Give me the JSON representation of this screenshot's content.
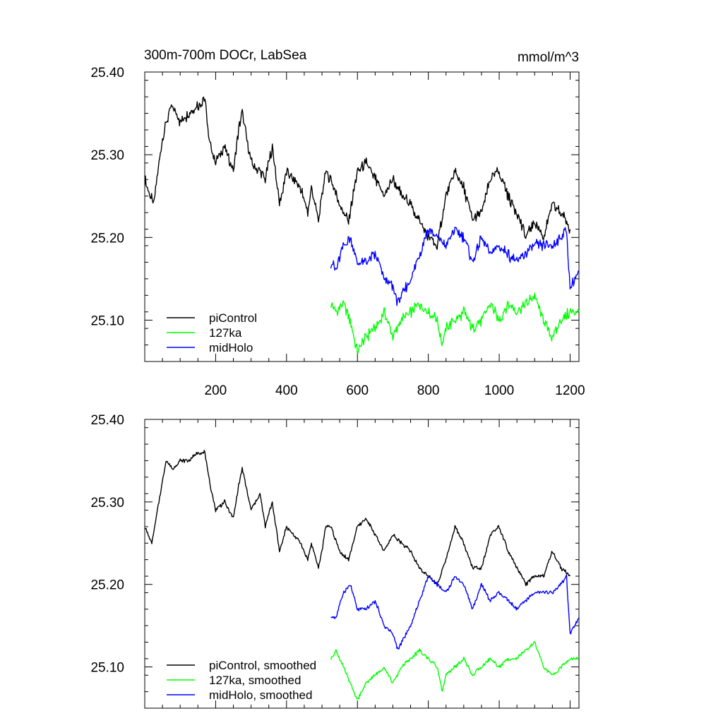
{
  "title": "300m-700m DOCr, LabSea",
  "units": "mmol/m^3",
  "chart_data": [
    {
      "type": "line",
      "xlim": [
        0,
        1225
      ],
      "ylim": [
        25.05,
        25.4
      ],
      "yticks": [
        25.1,
        25.2,
        25.3,
        25.4
      ],
      "ytick_labels": [
        "25.10",
        "25.20",
        "25.30",
        "25.40"
      ],
      "xticks": [
        200,
        400,
        600,
        800,
        1000,
        1200
      ],
      "xtick_labels": [
        "200",
        "400",
        "600",
        "800",
        "1000",
        "1200"
      ],
      "legend_position": "bottom-left",
      "series": [
        {
          "name": "piControl",
          "color": "#000000",
          "x": [
            0,
            25,
            50,
            75,
            100,
            125,
            150,
            170,
            180,
            200,
            225,
            250,
            265,
            275,
            300,
            325,
            340,
            360,
            380,
            400,
            420,
            440,
            460,
            470,
            490,
            500,
            510,
            525,
            550,
            575,
            600,
            625,
            650,
            675,
            700,
            725,
            750,
            775,
            800,
            825,
            850,
            875,
            900,
            925,
            950,
            975,
            1000,
            1025,
            1050,
            1075,
            1100,
            1125,
            1150,
            1175,
            1200
          ],
          "y": [
            25.27,
            25.24,
            25.32,
            25.36,
            25.34,
            25.35,
            25.36,
            25.37,
            25.32,
            25.29,
            25.31,
            25.28,
            25.33,
            25.35,
            25.29,
            25.28,
            25.27,
            25.31,
            25.24,
            25.28,
            25.27,
            25.26,
            25.23,
            25.26,
            25.22,
            25.25,
            25.28,
            25.27,
            25.24,
            25.22,
            25.28,
            25.29,
            25.27,
            25.25,
            25.27,
            25.25,
            25.24,
            25.22,
            25.2,
            25.19,
            25.25,
            25.28,
            25.26,
            25.22,
            25.23,
            25.27,
            25.28,
            25.25,
            25.23,
            25.2,
            25.22,
            25.2,
            25.24,
            25.23,
            25.21
          ]
        },
        {
          "name": "127ka",
          "color": "#00ff00",
          "x": [
            525,
            540,
            560,
            580,
            600,
            610,
            625,
            650,
            675,
            700,
            725,
            750,
            775,
            800,
            825,
            840,
            850,
            875,
            900,
            925,
            950,
            975,
            1000,
            1025,
            1050,
            1075,
            1100,
            1125,
            1150,
            1175,
            1200,
            1225
          ],
          "y": [
            25.12,
            25.11,
            25.12,
            25.1,
            25.06,
            25.07,
            25.08,
            25.09,
            25.11,
            25.08,
            25.1,
            25.11,
            25.12,
            25.11,
            25.1,
            25.07,
            25.09,
            25.1,
            25.11,
            25.09,
            25.1,
            25.12,
            25.1,
            25.12,
            25.11,
            25.12,
            25.13,
            25.1,
            25.08,
            25.1,
            25.11,
            25.11
          ]
        },
        {
          "name": "midHolo",
          "color": "#0000ff",
          "x": [
            525,
            540,
            560,
            580,
            600,
            625,
            650,
            675,
            700,
            715,
            725,
            750,
            775,
            800,
            825,
            850,
            875,
            900,
            925,
            950,
            975,
            1000,
            1025,
            1050,
            1075,
            1100,
            1125,
            1150,
            1175,
            1190,
            1200,
            1225
          ],
          "y": [
            25.17,
            25.16,
            25.19,
            25.2,
            25.17,
            25.17,
            25.18,
            25.15,
            25.14,
            25.12,
            25.13,
            25.15,
            25.18,
            25.21,
            25.2,
            25.19,
            25.21,
            25.2,
            25.17,
            25.2,
            25.18,
            25.19,
            25.18,
            25.17,
            25.18,
            25.19,
            25.19,
            25.19,
            25.2,
            25.21,
            25.14,
            25.16
          ]
        }
      ]
    },
    {
      "type": "line",
      "xlim": [
        0,
        1225
      ],
      "ylim": [
        25.05,
        25.4
      ],
      "yticks": [
        25.1,
        25.2,
        25.3,
        25.4
      ],
      "ytick_labels": [
        "25.10",
        "25.20",
        "25.30",
        "25.40"
      ],
      "xticks": [
        200,
        400,
        600,
        800,
        1000,
        1200
      ],
      "legend_position": "bottom-left",
      "series": [
        {
          "name": "piControl, smoothed",
          "color": "#000000",
          "x": [
            0,
            20,
            40,
            60,
            80,
            100,
            125,
            150,
            170,
            180,
            200,
            225,
            250,
            265,
            275,
            300,
            325,
            340,
            360,
            380,
            400,
            420,
            440,
            460,
            470,
            490,
            500,
            510,
            525,
            550,
            575,
            600,
            625,
            650,
            675,
            700,
            725,
            750,
            775,
            800,
            825,
            850,
            875,
            900,
            925,
            950,
            975,
            1000,
            1025,
            1050,
            1075,
            1100,
            1125,
            1150,
            1175,
            1200
          ],
          "y": [
            25.27,
            25.25,
            25.3,
            25.35,
            25.34,
            25.35,
            25.35,
            25.36,
            25.36,
            25.33,
            25.29,
            25.3,
            25.28,
            25.32,
            25.34,
            25.29,
            25.31,
            25.27,
            25.3,
            25.24,
            25.27,
            25.26,
            25.25,
            25.23,
            25.25,
            25.22,
            25.24,
            25.27,
            25.27,
            25.24,
            25.23,
            25.27,
            25.28,
            25.26,
            25.24,
            25.26,
            25.25,
            25.24,
            25.22,
            25.21,
            25.2,
            25.23,
            25.27,
            25.25,
            25.22,
            25.22,
            25.26,
            25.27,
            25.24,
            25.22,
            25.2,
            25.21,
            25.21,
            25.24,
            25.22,
            25.21
          ]
        },
        {
          "name": "127ka, smoothed",
          "color": "#00ff00",
          "x": [
            525,
            540,
            560,
            580,
            600,
            625,
            650,
            675,
            700,
            725,
            750,
            775,
            800,
            825,
            840,
            850,
            875,
            900,
            925,
            950,
            975,
            1000,
            1025,
            1050,
            1075,
            1100,
            1125,
            1150,
            1175,
            1200,
            1225
          ],
          "y": [
            25.11,
            25.12,
            25.1,
            25.08,
            25.06,
            25.08,
            25.09,
            25.1,
            25.08,
            25.1,
            25.11,
            25.12,
            25.11,
            25.1,
            25.07,
            25.09,
            25.1,
            25.11,
            25.09,
            25.1,
            25.11,
            25.1,
            25.11,
            25.11,
            25.12,
            25.13,
            25.1,
            25.09,
            25.1,
            25.11,
            25.11
          ]
        },
        {
          "name": "midHolo, smoothed",
          "color": "#0000ff",
          "x": [
            525,
            540,
            560,
            580,
            600,
            625,
            650,
            675,
            700,
            715,
            725,
            750,
            775,
            800,
            825,
            850,
            875,
            900,
            925,
            950,
            975,
            1000,
            1025,
            1050,
            1075,
            1100,
            1125,
            1150,
            1175,
            1190,
            1200,
            1225
          ],
          "y": [
            25.16,
            25.16,
            25.19,
            25.2,
            25.17,
            25.17,
            25.18,
            25.15,
            25.14,
            25.12,
            25.13,
            25.15,
            25.18,
            25.21,
            25.2,
            25.19,
            25.21,
            25.2,
            25.17,
            25.2,
            25.18,
            25.19,
            25.18,
            25.17,
            25.18,
            25.19,
            25.19,
            25.19,
            25.2,
            25.21,
            25.14,
            25.16
          ]
        }
      ]
    }
  ]
}
